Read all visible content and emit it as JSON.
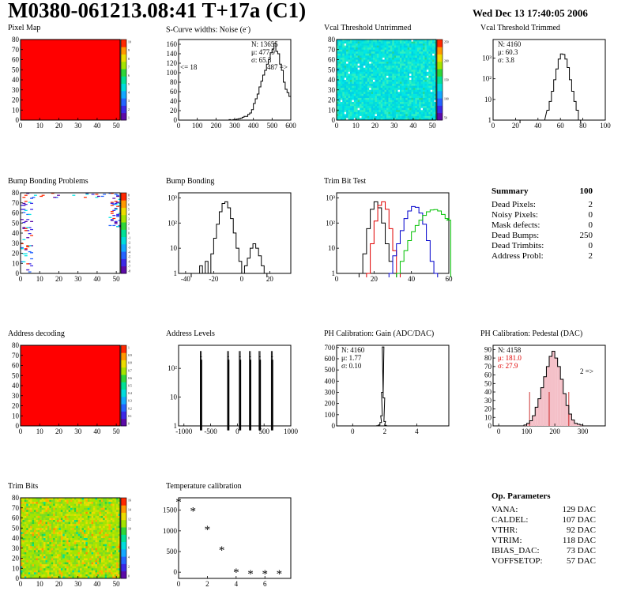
{
  "header": {
    "title": "M0380-061213.08:41 T+17a (C1)",
    "date": "Wed Dec 13 17:40:05 2006"
  },
  "colors": {
    "map_full": "#ff0000",
    "cyan": "#00e6e6",
    "trim_black": "#000000",
    "trim_red": "#e00000",
    "trim_blue": "#0000cc",
    "trim_green": "#00c000"
  },
  "palette": {
    "colors": [
      "#5c0aa8",
      "#3c28e6",
      "#2464ff",
      "#12a8ff",
      "#00dcdc",
      "#00e196",
      "#2ed638",
      "#a4e400",
      "#ecdc00",
      "#ff9800",
      "#ff2800"
    ],
    "ticks_10": [
      "10",
      "9",
      "8",
      "7",
      "6",
      "5",
      "4",
      "3",
      "2",
      "1"
    ],
    "ticks_bump": [
      "8",
      "7",
      "6",
      "5",
      "4",
      "3",
      "2",
      "1",
      "0",
      "-1",
      "-2",
      "-3",
      "-4",
      "-5",
      "-6",
      "-7",
      "-8"
    ],
    "ticks_vcal": [
      "250",
      "200",
      "150",
      "100",
      "50"
    ],
    "ticks_addr": [
      "1",
      "0.9",
      "0.8",
      "0.7",
      "0.6",
      "0.5",
      "0.4",
      "0.3",
      "0.2",
      "0.1",
      "0"
    ],
    "ticks_trim": [
      "16",
      "14",
      "12",
      "10",
      "8",
      "6",
      "4",
      "2",
      "0"
    ]
  },
  "charts": [
    {
      "title": "Pixel Map",
      "type": "heatmap",
      "fill": "uniform-red",
      "x_ticks": [
        "0",
        "10",
        "20",
        "30",
        "40",
        "50"
      ],
      "xlim": [
        0,
        52
      ],
      "y_ticks": [
        "0",
        "10",
        "20",
        "30",
        "40",
        "50",
        "60",
        "70",
        "80"
      ],
      "ylim": [
        0,
        80
      ],
      "palette_ticks": "ticks_10"
    },
    {
      "title": "S-Curve widths: Noise (e",
      "title_sup": "-",
      "title_end": ")",
      "type": "histogram",
      "x_ticks": [
        "0",
        "100",
        "200",
        "300",
        "400",
        "500",
        "600"
      ],
      "xlim": [
        0,
        600
      ],
      "y_ticks": [
        "0",
        "20",
        "40",
        "60",
        "80",
        "100",
        "120",
        "140",
        "160"
      ],
      "ylim": [
        0,
        170
      ],
      "stats": [
        "N: 13655",
        "μ: 477.9",
        "σ: 65.3"
      ],
      "annotations": [
        "<= 18",
        "487 =>"
      ],
      "chart_data": {
        "type": "histogram",
        "bins_x": [
          260,
          270,
          280,
          290,
          300,
          310,
          320,
          330,
          340,
          350,
          360,
          370,
          380,
          390,
          400,
          410,
          420,
          430,
          440,
          450,
          460,
          470,
          480,
          490,
          500,
          510,
          520,
          530,
          540,
          550,
          560,
          570,
          580,
          590
        ],
        "values": [
          0,
          1,
          0,
          1,
          1,
          2,
          3,
          4,
          6,
          8,
          8,
          12,
          15,
          22,
          35,
          45,
          55,
          70,
          82,
          95,
          105,
          118,
          128,
          142,
          150,
          162,
          145,
          140,
          118,
          105,
          80,
          65,
          58,
          50
        ]
      }
    },
    {
      "title": "Vcal Threshold Untrimmed",
      "type": "heatmap",
      "fill": "noise-cyan",
      "x_ticks": [
        "0",
        "10",
        "20",
        "30",
        "40",
        "50"
      ],
      "xlim": [
        0,
        52
      ],
      "y_ticks": [
        "0",
        "10",
        "20",
        "30",
        "40",
        "50",
        "60",
        "70",
        "80"
      ],
      "ylim": [
        0,
        80
      ],
      "palette_ticks": "ticks_vcal"
    },
    {
      "title": "Vcal Threshold Trimmed",
      "type": "histogram-log",
      "x_ticks": [
        "0",
        "20",
        "40",
        "60",
        "80",
        "100"
      ],
      "xlim": [
        0,
        100
      ],
      "y_ticks": [
        "1",
        "10",
        "10²",
        "10³"
      ],
      "ylog": [
        0,
        3.9
      ],
      "stats": [
        "N: 4160",
        "μ: 60.3",
        "σ:  3.8"
      ],
      "chart_data": {
        "type": "histogram",
        "series": [
          {
            "color": "trim_black",
            "points": [
              [
                25,
                1
              ],
              [
                45,
                1
              ],
              [
                49,
                3
              ],
              [
                51,
                8
              ],
              [
                53,
                25
              ],
              [
                55,
                90
              ],
              [
                57,
                300
              ],
              [
                59,
                900
              ],
              [
                61,
                1600
              ],
              [
                63,
                1500
              ],
              [
                65,
                900
              ],
              [
                67,
                350
              ],
              [
                69,
                90
              ],
              [
                71,
                25
              ],
              [
                73,
                8
              ],
              [
                75,
                3
              ],
              [
                77,
                1
              ]
            ]
          }
        ]
      }
    },
    {
      "title": "Bump Bonding Problems",
      "type": "heatmap",
      "fill": "sparse",
      "x_ticks": [
        "0",
        "10",
        "20",
        "30",
        "40",
        "50"
      ],
      "xlim": [
        0,
        52
      ],
      "y_ticks": [
        "0",
        "10",
        "20",
        "30",
        "40",
        "50",
        "60",
        "70",
        "80"
      ],
      "ylim": [
        0,
        80
      ],
      "palette_ticks": "ticks_bump"
    },
    {
      "title": "Bump Bonding",
      "type": "histogram-log",
      "x_ticks": [
        "-40",
        "-20",
        "0",
        "20"
      ],
      "xlim": [
        -45,
        35
      ],
      "y_ticks": [
        "1",
        "10",
        "10²",
        "10³"
      ],
      "ylog": [
        0,
        3.2
      ],
      "chart_data": {
        "type": "histogram",
        "series": [
          {
            "color": "trim_black",
            "points": [
              [
                -35,
                1
              ],
              [
                -31,
                1
              ],
              [
                -29,
                2
              ],
              [
                -27,
                1
              ],
              [
                -25,
                3
              ],
              [
                -23,
                1
              ],
              [
                -21,
                6
              ],
              [
                -19,
                25
              ],
              [
                -17,
                90
              ],
              [
                -15,
                280
              ],
              [
                -13,
                600
              ],
              [
                -11,
                700
              ],
              [
                -9,
                400
              ],
              [
                -7,
                150
              ],
              [
                -5,
                40
              ],
              [
                -3,
                10
              ],
              [
                -1,
                3
              ],
              [
                1,
                1
              ],
              [
                3,
                2
              ],
              [
                5,
                4
              ],
              [
                7,
                10
              ],
              [
                9,
                15
              ],
              [
                11,
                10
              ],
              [
                13,
                5
              ],
              [
                15,
                2
              ],
              [
                17,
                1
              ]
            ]
          }
        ]
      }
    },
    {
      "title": "Trim Bit Test",
      "type": "histogram-log-multi",
      "x_ticks": [
        "0",
        "20",
        "40",
        "60"
      ],
      "xlim": [
        0,
        60
      ],
      "y_ticks": [
        "1",
        "10",
        "10²",
        "10³"
      ],
      "ylog": [
        0,
        3.2
      ],
      "chart_data": {
        "type": "histogram",
        "series": [
          {
            "color": "trim_black",
            "points": [
              [
                13,
                1
              ],
              [
                15,
                6
              ],
              [
                17,
                60
              ],
              [
                19,
                350
              ],
              [
                21,
                700
              ],
              [
                23,
                400
              ],
              [
                25,
                100
              ],
              [
                27,
                15
              ],
              [
                29,
                3
              ],
              [
                31,
                1
              ]
            ]
          },
          {
            "color": "trim_red",
            "points": [
              [
                17,
                1
              ],
              [
                19,
                15
              ],
              [
                21,
                120
              ],
              [
                23,
                500
              ],
              [
                25,
                700
              ],
              [
                27,
                350
              ],
              [
                29,
                60
              ],
              [
                31,
                8
              ],
              [
                33,
                1
              ]
            ]
          },
          {
            "color": "trim_blue",
            "points": [
              [
                29,
                1
              ],
              [
                31,
                5
              ],
              [
                33,
                15
              ],
              [
                35,
                50
              ],
              [
                37,
                150
              ],
              [
                39,
                300
              ],
              [
                41,
                450
              ],
              [
                43,
                420
              ],
              [
                45,
                250
              ],
              [
                47,
                90
              ],
              [
                49,
                20
              ],
              [
                51,
                3
              ],
              [
                53,
                1
              ]
            ]
          },
          {
            "color": "trim_green",
            "points": [
              [
                33,
                1
              ],
              [
                35,
                3
              ],
              [
                37,
                8
              ],
              [
                39,
                20
              ],
              [
                41,
                45
              ],
              [
                43,
                80
              ],
              [
                45,
                130
              ],
              [
                47,
                200
              ],
              [
                49,
                280
              ],
              [
                51,
                330
              ],
              [
                53,
                340
              ],
              [
                55,
                300
              ],
              [
                57,
                220
              ],
              [
                59,
                150
              ],
              [
                60,
                130
              ]
            ]
          }
        ]
      }
    },
    {
      "title": "Address decoding",
      "type": "heatmap",
      "fill": "uniform-red",
      "x_ticks": [
        "0",
        "10",
        "20",
        "30",
        "40",
        "50"
      ],
      "xlim": [
        0,
        52
      ],
      "y_ticks": [
        "0",
        "10",
        "20",
        "30",
        "40",
        "50",
        "60",
        "70",
        "80"
      ],
      "ylim": [
        0,
        80
      ],
      "palette_ticks": "ticks_addr"
    },
    {
      "title": "Address Levels",
      "type": "histogram-log",
      "x_ticks": [
        "-1000",
        "-500",
        "0",
        "500",
        "1000"
      ],
      "xlim": [
        -1100,
        1000
      ],
      "y_ticks": [
        "1",
        "10",
        "10²"
      ],
      "ylog": [
        0,
        2.8
      ],
      "chart_data": {
        "type": "spikes",
        "centers": [
          -680,
          -170,
          50,
          240,
          420,
          650
        ],
        "height_log10": 2.6
      }
    },
    {
      "title": "PH Calibration: Gain (ADC/DAC)",
      "type": "histogram",
      "x_ticks": [
        "0",
        "2",
        "4"
      ],
      "xlim": [
        -1,
        6
      ],
      "y_ticks": [
        "0",
        "100",
        "200",
        "300",
        "400",
        "500",
        "600",
        "700"
      ],
      "ylim": [
        0,
        720
      ],
      "stats": [
        "N: 4160",
        "μ: 1.77",
        "σ: 0.10"
      ],
      "chart_data": {
        "type": "histogram",
        "bins_x": [
          1.5,
          1.6,
          1.7,
          1.75,
          1.8,
          1.85,
          1.9,
          1.95,
          2.0
        ],
        "values": [
          2,
          8,
          30,
          90,
          300,
          705,
          250,
          40,
          5
        ]
      }
    },
    {
      "title": "PH Calibration: Pedestal (DAC)",
      "type": "histogram-shaded",
      "x_ticks": [
        "0",
        "100",
        "200",
        "300"
      ],
      "xlim": [
        -20,
        380
      ],
      "y_ticks": [
        "0",
        "10",
        "20",
        "30",
        "40",
        "50",
        "60",
        "70",
        "80",
        "90"
      ],
      "ylim": [
        0,
        95
      ],
      "stats": [
        "N: 4158",
        "μ: 181.0",
        "σ: 27.9"
      ],
      "stat_colors": [
        "#000000",
        "#e00000",
        "#e00000"
      ],
      "annotations": [
        "2 =>"
      ],
      "chart_data": {
        "type": "histogram",
        "bins_x": [
          90,
          100,
          110,
          120,
          130,
          140,
          150,
          160,
          170,
          180,
          190,
          200,
          210,
          220,
          230,
          240,
          250,
          260,
          270,
          280,
          290
        ],
        "values": [
          1,
          3,
          6,
          12,
          22,
          32,
          45,
          58,
          70,
          82,
          88,
          80,
          70,
          55,
          38,
          24,
          14,
          7,
          3,
          2,
          1
        ],
        "markers_x": [
          110,
          180,
          250
        ]
      }
    },
    {
      "title": "Trim Bits",
      "type": "heatmap",
      "fill": "noise-trim",
      "x_ticks": [
        "0",
        "10",
        "20",
        "30",
        "40",
        "50"
      ],
      "xlim": [
        0,
        52
      ],
      "y_ticks": [
        "0",
        "10",
        "20",
        "30",
        "40",
        "50",
        "60",
        "70",
        "80"
      ],
      "ylim": [
        0,
        80
      ],
      "palette_ticks": "ticks_trim"
    },
    {
      "title": "Temperature calibration",
      "type": "scatter",
      "x_ticks": [
        "0",
        "2",
        "4",
        "6"
      ],
      "xlim": [
        0,
        7.8
      ],
      "y_ticks": [
        "0",
        "500",
        "1000",
        "1500"
      ],
      "ylim": [
        -150,
        1800
      ],
      "chart_data": {
        "type": "scatter",
        "x": [
          0,
          1,
          2,
          3,
          4,
          5,
          6,
          7
        ],
        "y": [
          1700,
          1480,
          1040,
          540,
          0,
          -40,
          -40,
          -40
        ]
      }
    }
  ],
  "summary": {
    "heading": "Summary",
    "heading_value": "100",
    "rows": [
      {
        "label": "Dead Pixels:",
        "value": "2"
      },
      {
        "label": "Noisy Pixels:",
        "value": "0"
      },
      {
        "label": "Mask defects:",
        "value": "0"
      },
      {
        "label": "Dead Bumps:",
        "value": "250"
      },
      {
        "label": "Dead Trimbits:",
        "value": "0"
      },
      {
        "label": "Address Probl:",
        "value": "2"
      }
    ]
  },
  "op_parameters": {
    "heading": "Op. Parameters",
    "rows": [
      {
        "label": "VANA:",
        "value": "129 DAC"
      },
      {
        "label": "CALDEL:",
        "value": "107 DAC"
      },
      {
        "label": "VTHR:",
        "value": "92 DAC"
      },
      {
        "label": "VTRIM:",
        "value": "118 DAC"
      },
      {
        "label": "IBIAS_DAC:",
        "value": "73 DAC"
      },
      {
        "label": "VOFFSETOP:",
        "value": "57 DAC"
      }
    ]
  }
}
